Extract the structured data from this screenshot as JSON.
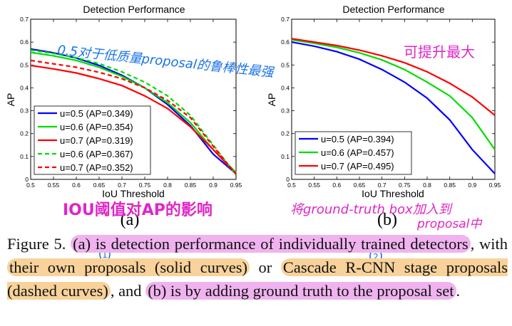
{
  "chart_data": [
    {
      "type": "line",
      "title": "Detection Performance",
      "xlabel": "IoU Threshold",
      "ylabel": "AP",
      "xlim": [
        0.5,
        0.95
      ],
      "ylim": [
        0,
        0.7
      ],
      "xticks": [
        "0.5",
        "0.55",
        "0.6",
        "0.65",
        "0.7",
        "0.75",
        "0.8",
        "0.85",
        "0.9",
        "0.95"
      ],
      "yticks": [
        "0",
        "0.1",
        "0.2",
        "0.3",
        "0.4",
        "0.5",
        "0.6",
        "0.7"
      ],
      "legend_position": "bottom-left",
      "x": [
        0.5,
        0.55,
        0.6,
        0.65,
        0.7,
        0.75,
        0.8,
        0.85,
        0.9,
        0.95
      ],
      "series": [
        {
          "name": "u=0.5 (AP=0.349)",
          "color": "#0000ff",
          "dash": false,
          "values": [
            0.57,
            0.553,
            0.53,
            0.498,
            0.455,
            0.4,
            0.327,
            0.235,
            0.11,
            0.025
          ]
        },
        {
          "name": "u=0.6 (AP=0.354)",
          "color": "#00dd00",
          "dash": false,
          "values": [
            0.555,
            0.54,
            0.52,
            0.49,
            0.45,
            0.4,
            0.335,
            0.248,
            0.13,
            0.03
          ]
        },
        {
          "name": "u=0.7 (AP=0.319)",
          "color": "#ff0000",
          "dash": false,
          "values": [
            0.498,
            0.483,
            0.465,
            0.44,
            0.41,
            0.365,
            0.31,
            0.23,
            0.13,
            0.025
          ]
        },
        {
          "name": "u=0.6 (AP=0.367)",
          "color": "#00dd00",
          "dash": true,
          "values": [
            0.565,
            0.55,
            0.532,
            0.506,
            0.47,
            0.425,
            0.365,
            0.28,
            0.15,
            0.02
          ]
        },
        {
          "name": "u=0.7 (AP=0.352)",
          "color": "#ff0000",
          "dash": true,
          "values": [
            0.52,
            0.505,
            0.49,
            0.468,
            0.44,
            0.4,
            0.345,
            0.27,
            0.145,
            0.022
          ]
        }
      ],
      "panel_label": "(a)"
    },
    {
      "type": "line",
      "title": "Detection Performance",
      "xlabel": "IoU Threshold",
      "ylabel": "AP",
      "xlim": [
        0.5,
        0.95
      ],
      "ylim": [
        0,
        0.7
      ],
      "xticks": [
        "0.5",
        "0.55",
        "0.6",
        "0.65",
        "0.7",
        "0.75",
        "0.8",
        "0.85",
        "0.9",
        "0.95"
      ],
      "yticks": [
        "0",
        "0.1",
        "0.2",
        "0.3",
        "0.4",
        "0.5",
        "0.6",
        "0.7"
      ],
      "legend_position": "bottom-left",
      "x": [
        0.5,
        0.55,
        0.6,
        0.65,
        0.7,
        0.75,
        0.8,
        0.85,
        0.9,
        0.95
      ],
      "series": [
        {
          "name": "u=0.5 (AP=0.394)",
          "color": "#0000ff",
          "dash": false,
          "values": [
            0.6,
            0.582,
            0.558,
            0.525,
            0.48,
            0.425,
            0.355,
            0.26,
            0.13,
            0.025
          ]
        },
        {
          "name": "u=0.6 (AP=0.457)",
          "color": "#00dd00",
          "dash": false,
          "values": [
            0.61,
            0.595,
            0.577,
            0.553,
            0.522,
            0.48,
            0.425,
            0.365,
            0.27,
            0.13
          ]
        },
        {
          "name": "u=0.7 (AP=0.495)",
          "color": "#ff0000",
          "dash": false,
          "values": [
            0.615,
            0.6,
            0.585,
            0.565,
            0.54,
            0.51,
            0.47,
            0.42,
            0.36,
            0.28
          ]
        }
      ],
      "panel_label": "(b)"
    }
  ],
  "caption": {
    "prefix": "Figure 5. ",
    "part_a": "(a) is detection performance of individually trained detectors",
    "with": ", with ",
    "part_own": "their own proposals (solid curves)",
    "or": " or ",
    "part_cascade": "Cascade R-CNN stage proposals (dashed curves)",
    "and": ", and ",
    "part_b": "(b) is by adding ground truth to the proposal set",
    "end": "."
  },
  "annotations": {
    "blue_note": "0.5对于低质量proposal的鲁棒性最强",
    "pink_note_a": "IOU阈值对AP的影响",
    "pink_note_b_top": "可提升最大",
    "pink_note_b_line1": "将ground-truth box加入到",
    "pink_note_b_line2": "proposal中",
    "circle_1": "1",
    "circle_2": "2",
    "pink_color": "#e026c5",
    "blue_color": "#1a73e8"
  }
}
